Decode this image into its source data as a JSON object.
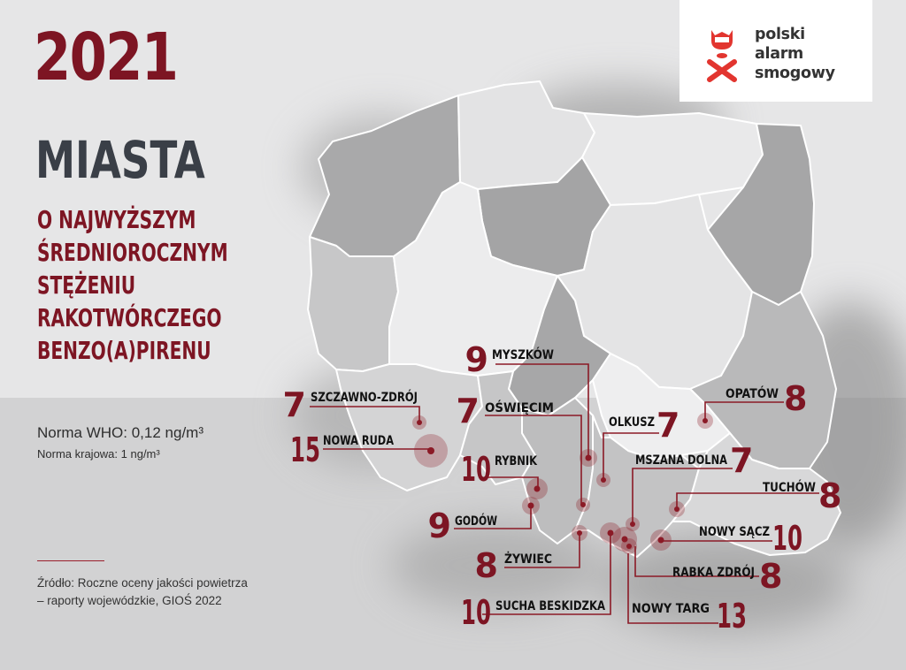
{
  "title": {
    "year": "2021",
    "main": "MIASTA",
    "subtitle_lines": [
      "O NAJWYŻSZYM",
      "ŚREDNIOROCZNYM",
      "STĘŻENIU",
      "RAKOTWÓRCZEGO",
      "BENZO(A)PIRENU"
    ]
  },
  "norms": {
    "who": "Norma WHO: 0,12 ng/m³",
    "national": "Norma krajowa: 1 ng/m³"
  },
  "source": {
    "line1": "Źródło: Roczne oceny jakości powietrza",
    "line2": "– raporty wojewódzkie, GIOŚ 2022"
  },
  "logo": {
    "line1": "polski",
    "line2": "alarm",
    "line3": "smogowy"
  },
  "cities": [
    {
      "name": "SZCZAWNO-ZDRÓJ",
      "value": "7"
    },
    {
      "name": "NOWA RUDA",
      "value": "15"
    },
    {
      "name": "MYSZKÓW",
      "value": "9"
    },
    {
      "name": "OŚWIĘCIM",
      "value": "7"
    },
    {
      "name": "RYBNIK",
      "value": "10"
    },
    {
      "name": "GODÓW",
      "value": "9"
    },
    {
      "name": "ŻYWIEC",
      "value": "8"
    },
    {
      "name": "SUCHA BESKIDZKA",
      "value": "10"
    },
    {
      "name": "OLKUSZ",
      "value": "7"
    },
    {
      "name": "MSZANA DOLNA",
      "value": "7"
    },
    {
      "name": "OPATÓW",
      "value": "8"
    },
    {
      "name": "TUCHÓW",
      "value": "8"
    },
    {
      "name": "NOWY SĄCZ",
      "value": "10"
    },
    {
      "name": "RABKA ZDRÓJ",
      "value": "8"
    },
    {
      "name": "NOWY TARG",
      "value": "13"
    }
  ],
  "colors": {
    "accent": "#7d1523",
    "marker": "#8b1a26",
    "title_dark": "#3a3f47",
    "logo_red": "#e2352f"
  }
}
